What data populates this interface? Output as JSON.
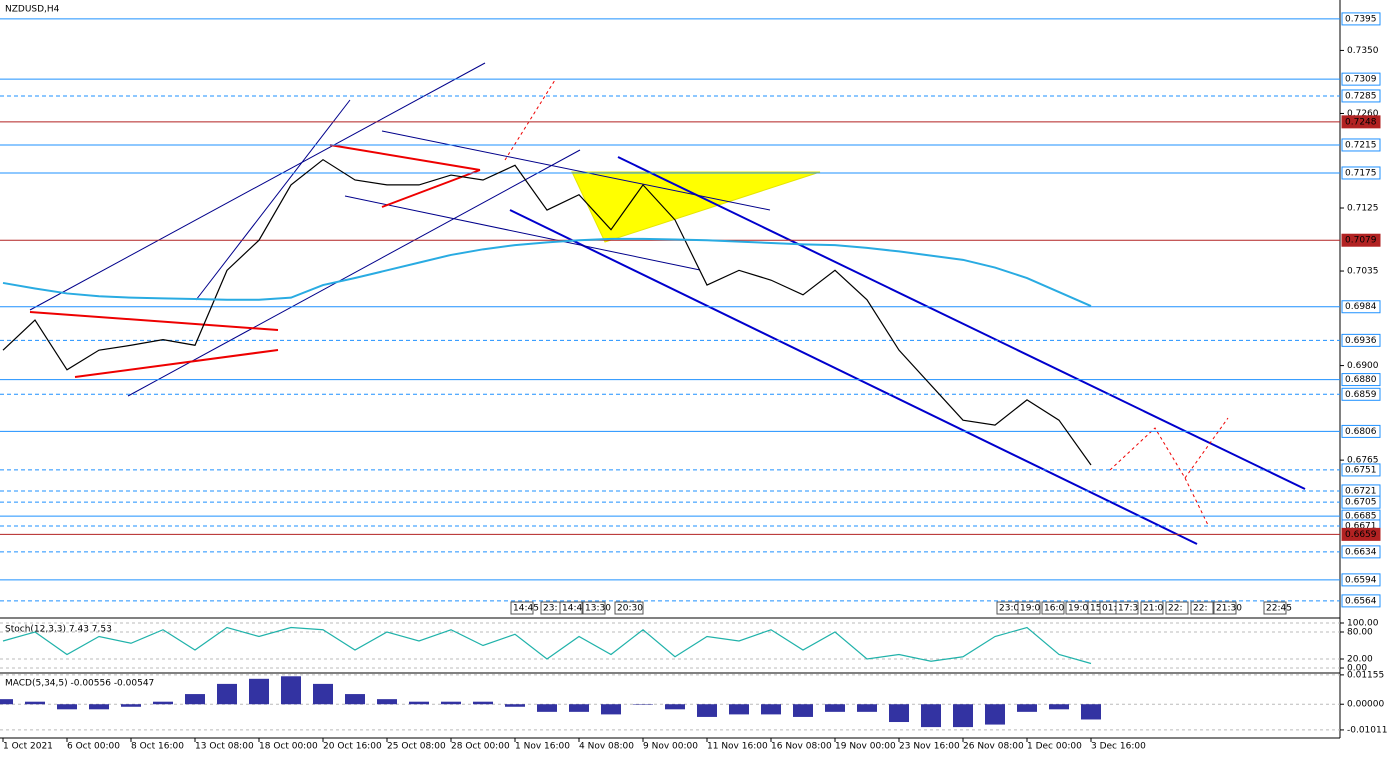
{
  "chart_data": [
    {
      "type": "line",
      "title": "NZDUSD,H4",
      "ylim": [
        0.6541,
        0.7422
      ],
      "yticks": [
        {
          "value": 0.735,
          "label": "0.7350"
        },
        {
          "value": 0.726,
          "label": "0.7260"
        },
        0.7125,
        0.7035,
        {
          "value": 0.69,
          "label": "0.6900"
        },
        0.6765
      ],
      "levels": [
        {
          "value": 0.7395,
          "color": "#1e90ff",
          "style": "solid"
        },
        {
          "value": 0.7309,
          "color": "#1e90ff",
          "style": "solid"
        },
        {
          "value": 0.7285,
          "color": "#1e90ff",
          "style": "dashed"
        },
        {
          "value": 0.7248,
          "color": "#b22222",
          "style": "solid"
        },
        {
          "value": 0.7215,
          "color": "#1e90ff",
          "style": "solid"
        },
        {
          "value": 0.7175,
          "color": "#1e90ff",
          "style": "solid"
        },
        {
          "value": 0.7079,
          "color": "#b22222",
          "style": "solid"
        },
        {
          "value": 0.6984,
          "color": "#1e90ff",
          "style": "solid"
        },
        {
          "value": 0.6936,
          "color": "#1e90ff",
          "style": "dashed"
        },
        {
          "value": 0.688,
          "label": "0.6880",
          "color": "#1e90ff",
          "style": "solid"
        },
        {
          "value": 0.6859,
          "color": "#1e90ff",
          "style": "dashed"
        },
        {
          "value": 0.6806,
          "color": "#1e90ff",
          "style": "solid"
        },
        {
          "value": 0.6751,
          "color": "#1e90ff",
          "style": "dashed"
        },
        {
          "value": 0.6721,
          "color": "#1e90ff",
          "style": "dashed"
        },
        {
          "value": 0.6705,
          "color": "#1e90ff",
          "style": "dashed"
        },
        {
          "value": 0.6685,
          "color": "#1e90ff",
          "style": "solid"
        },
        {
          "value": 0.6671,
          "color": "#1e90ff",
          "style": "dashed"
        },
        {
          "value": 0.6659,
          "color": "#b22222",
          "style": "solid"
        },
        {
          "value": 0.6634,
          "color": "#1e90ff",
          "style": "dashed"
        },
        {
          "value": 0.6594,
          "color": "#1e90ff",
          "style": "solid"
        },
        {
          "value": 0.6564,
          "color": "#1e90ff",
          "style": "dashed"
        }
      ],
      "xticks": [
        {
          "value": 0,
          "label": "1 Oct 2021"
        },
        {
          "value": 2,
          "label": "6 Oct 00:00"
        },
        {
          "value": 4,
          "label": "8 Oct 16:00"
        },
        {
          "value": 6,
          "label": "13 Oct 08:00"
        },
        {
          "value": 8,
          "label": "18 Oct 00:00"
        },
        {
          "value": 10,
          "label": "20 Oct 16:00"
        },
        {
          "value": 12,
          "label": "25 Oct 08:00"
        },
        {
          "value": 14,
          "label": "28 Oct 00:00"
        },
        {
          "value": 16,
          "label": "1 Nov 16:00"
        },
        {
          "value": 18,
          "label": "4 Nov 08:00"
        },
        {
          "value": 20,
          "label": "9 Nov 00:00"
        },
        {
          "value": 22,
          "label": "11 Nov 16:00"
        },
        {
          "value": 24,
          "label": "16 Nov 08:00"
        },
        {
          "value": 26,
          "label": "19 Nov 00:00"
        },
        {
          "value": 28,
          "label": "23 Nov 16:00"
        },
        {
          "value": 30,
          "label": "26 Nov 08:00"
        },
        {
          "value": 32,
          "label": "1 Dec 00:00"
        },
        {
          "value": 34,
          "label": "3 Dec 16:00"
        }
      ],
      "time_markers": [
        "14:45",
        "23:",
        "14:45",
        "13:30",
        "20:30",
        "23:0",
        "19:0",
        "16:0",
        "19:0",
        "15",
        "01:",
        "17:3",
        "21:0",
        "22:",
        "22:",
        "21:30",
        "22:45"
      ],
      "series": [
        {
          "color": "#000000",
          "values": [
            0.6922,
            0.6965,
            0.6894,
            0.6922,
            0.6929,
            0.6937,
            0.6929,
            0.7036,
            0.7079,
            0.7158,
            0.7194,
            0.7165,
            0.7158,
            0.7158,
            0.7172,
            0.7165,
            0.7186,
            0.7122,
            0.7144,
            0.7094,
            0.7158,
            0.7108,
            0.7015,
            0.7036,
            0.7022,
            0.7001,
            0.7036,
            0.6994,
            0.6922,
            0.6872,
            0.6822,
            0.6815,
            0.6851,
            0.6822,
            0.6758
          ]
        },
        {
          "color": "#29abe2",
          "values": [
            0.7018,
            0.701,
            0.7003,
            0.6999,
            0.6997,
            0.6996,
            0.6995,
            0.6994,
            0.6994,
            0.6997,
            0.7015,
            0.7025,
            0.7036,
            0.7047,
            0.7058,
            0.7066,
            0.7072,
            0.7076,
            0.7079,
            0.7081,
            0.7081,
            0.708,
            0.7079,
            0.7077,
            0.7075,
            0.7073,
            0.7072,
            0.7068,
            0.7063,
            0.7057,
            0.7051,
            0.704,
            0.7025,
            0.7005,
            0.6985
          ]
        }
      ]
    },
    {
      "type": "line",
      "title": "Stoch(12,3,3) 7.43 7.53",
      "ylim": [
        0,
        100
      ],
      "yticks": [
        {
          "value": 100,
          "label": "100.00"
        },
        {
          "value": 80,
          "label": "80.00"
        },
        {
          "value": 20,
          "label": "20.00"
        },
        {
          "value": 0,
          "label": "0.00"
        }
      ],
      "series": [
        {
          "color": "#20b2aa",
          "values": [
            60,
            80,
            30,
            70,
            55,
            85,
            40,
            90,
            70,
            90,
            85,
            40,
            80,
            60,
            85,
            50,
            75,
            20,
            70,
            30,
            85,
            25,
            70,
            60,
            85,
            40,
            80,
            20,
            30,
            15,
            25,
            70,
            90,
            30,
            10
          ]
        }
      ]
    },
    {
      "type": "bar",
      "title": "MACD(5,34,5) -0.00556 -0.00547",
      "ylim": [
        -0.0125,
        0.0115
      ],
      "yticks": [
        0.01155,
        {
          "value": 0,
          "label": "0.00000"
        },
        -0.01011
      ],
      "series": [
        {
          "color": "#00008b",
          "values": [
            0.002,
            0.001,
            -0.002,
            -0.002,
            -0.001,
            0.001,
            0.004,
            0.008,
            0.01,
            0.011,
            0.008,
            0.004,
            0.002,
            0.001,
            0.001,
            0.001,
            -0.001,
            -0.003,
            -0.003,
            -0.004,
            0,
            -0.002,
            -0.005,
            -0.004,
            -0.004,
            -0.005,
            -0.003,
            -0.003,
            -0.007,
            -0.009,
            -0.009,
            -0.008,
            -0.003,
            -0.002,
            -0.006
          ]
        }
      ]
    }
  ]
}
